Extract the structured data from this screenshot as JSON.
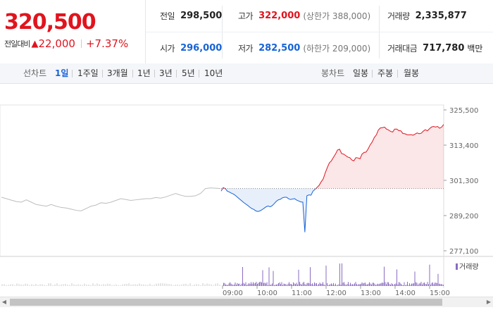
{
  "current": {
    "price": "320,500",
    "change_label": "전일대비",
    "change_icon": "up-triangle-icon",
    "change_abs": "22,000",
    "change_pct": "+7.37%"
  },
  "stats": {
    "prev_close": {
      "label": "전일",
      "value": "298,500"
    },
    "high": {
      "label": "고가",
      "value": "322,000",
      "sub": "(상한가 388,000)"
    },
    "volume": {
      "label": "거래량",
      "value": "2,335,877"
    },
    "open": {
      "label": "시가",
      "value": "296,000"
    },
    "low": {
      "label": "저가",
      "value": "282,500",
      "sub": "(하한가 209,000)"
    },
    "amount": {
      "label": "거래대금",
      "value": "717,780",
      "unit": "백만"
    }
  },
  "tabs": {
    "line_label": "선차트",
    "line": [
      "1일",
      "1주일",
      "3개월",
      "1년",
      "3년",
      "5년",
      "10년"
    ],
    "active": "1일",
    "candle_label": "봉차트",
    "candle": [
      "일봉",
      "주봉",
      "월봉"
    ]
  },
  "colors": {
    "up": "#e0141e",
    "down": "#1763d6",
    "prev_day": "#bdbdbd",
    "volume": "#8a6bbf"
  },
  "chart_data": {
    "type": "line",
    "title": "",
    "yticks": [
      "325,500",
      "313,400",
      "301,300",
      "289,200",
      "277,100"
    ],
    "ylim": [
      277100,
      325500
    ],
    "baseline": 298500,
    "volume_legend": "거래량",
    "xticks": [
      "09:00",
      "10:00",
      "11:00",
      "12:00",
      "13:00",
      "14:00",
      "15:00"
    ],
    "series": [
      {
        "values": [
          295500,
          295000,
          294500,
          294000,
          293800,
          294600,
          293800,
          293000,
          292700,
          292400,
          293000,
          292400,
          292000,
          291800,
          291400,
          291000,
          290800,
          291600,
          292400,
          292800,
          293600,
          293400,
          293800,
          294400,
          295000,
          294700,
          294400,
          294600,
          294800,
          295000,
          295000,
          295400,
          295200,
          295600,
          296200,
          296800,
          296200,
          295800,
          295800,
          296000,
          296800,
          298500,
          298700,
          298600,
          298500
        ]
      },
      {
        "values": [
          297600,
          298800,
          298500,
          297600,
          297300,
          296900,
          296600,
          296100,
          295500,
          294900,
          294300,
          293700,
          293200,
          292700,
          292100,
          291600,
          291300,
          290800,
          290600,
          290800,
          291200,
          291700,
          292200,
          292500,
          292200,
          292600,
          293300,
          294100,
          294600,
          294800,
          295300,
          295500,
          295500,
          295000,
          294700,
          294900,
          295000,
          294500,
          294200,
          293900,
          293800,
          283500,
          296000,
          296300,
          296200,
          297600,
          298200,
          298900,
          299600,
          300800,
          301800,
          303900,
          305700,
          307300,
          308000,
          309200,
          310300,
          311700,
          312000,
          310500,
          310300,
          309800,
          309300,
          309100,
          308300,
          308000,
          309100,
          309000,
          308700,
          310300,
          310900,
          311000,
          312100,
          313500,
          314500,
          316000,
          316900,
          318600,
          319300,
          319400,
          319600,
          318900,
          318600,
          318100,
          317900,
          318900,
          318900,
          318400,
          318300,
          317400,
          317300,
          317000,
          316900,
          317000,
          316800,
          317200,
          317600,
          317300,
          317500,
          318200,
          318700,
          318300,
          319000,
          319600,
          319800,
          319600,
          319800,
          319200,
          319600,
          320500
        ]
      }
    ]
  }
}
